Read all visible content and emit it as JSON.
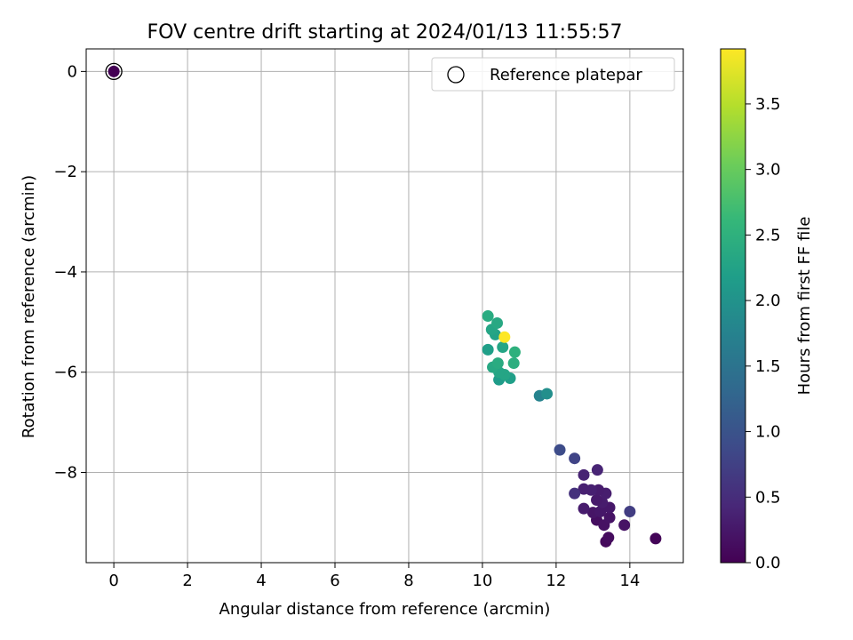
{
  "chart_data": {
    "type": "scatter",
    "title": "FOV centre drift starting at 2024/01/13 11:55:57",
    "xlabel": "Angular distance from reference (arcmin)",
    "ylabel": "Rotation from reference (arcmin)",
    "xlim": [
      -0.75,
      15.45
    ],
    "ylim": [
      -9.8,
      0.45
    ],
    "x_ticks": [
      0,
      2,
      4,
      6,
      8,
      10,
      12,
      14
    ],
    "y_ticks": [
      0,
      -2,
      -4,
      -6,
      -8
    ],
    "grid": true,
    "legend": {
      "placement": "top-right",
      "entries": [
        "Reference platepar"
      ]
    },
    "colorbar": {
      "label": "Hours from first FF file",
      "range": [
        0,
        3.92
      ],
      "ticks": [
        "0.0",
        "0.5",
        "1.0",
        "1.5",
        "2.0",
        "2.5",
        "3.0",
        "3.5"
      ],
      "colormap": "viridis"
    },
    "reference_point": {
      "x": 0,
      "y": 0,
      "hours": 0
    },
    "points": [
      {
        "x": 14.7,
        "y": -9.32,
        "hours": 0.05
      },
      {
        "x": 13.35,
        "y": -9.38,
        "hours": 0.1
      },
      {
        "x": 13.42,
        "y": -9.3,
        "hours": 0.12
      },
      {
        "x": 13.85,
        "y": -9.05,
        "hours": 0.2
      },
      {
        "x": 13.1,
        "y": -8.95,
        "hours": 0.15
      },
      {
        "x": 13.3,
        "y": -9.05,
        "hours": 0.18
      },
      {
        "x": 13.45,
        "y": -8.9,
        "hours": 0.2
      },
      {
        "x": 13.0,
        "y": -8.8,
        "hours": 0.22
      },
      {
        "x": 13.2,
        "y": -8.78,
        "hours": 0.25
      },
      {
        "x": 13.45,
        "y": -8.7,
        "hours": 0.25
      },
      {
        "x": 13.25,
        "y": -8.6,
        "hours": 0.3
      },
      {
        "x": 13.1,
        "y": -8.55,
        "hours": 0.28
      },
      {
        "x": 12.75,
        "y": -8.72,
        "hours": 0.3
      },
      {
        "x": 13.35,
        "y": -8.42,
        "hours": 0.32
      },
      {
        "x": 13.15,
        "y": -8.35,
        "hours": 0.3
      },
      {
        "x": 12.75,
        "y": -8.33,
        "hours": 0.35
      },
      {
        "x": 12.95,
        "y": -8.35,
        "hours": 0.35
      },
      {
        "x": 12.75,
        "y": -8.05,
        "hours": 0.38
      },
      {
        "x": 13.12,
        "y": -7.95,
        "hours": 0.4
      },
      {
        "x": 12.5,
        "y": -8.42,
        "hours": 0.55
      },
      {
        "x": 14.0,
        "y": -8.78,
        "hours": 0.7
      },
      {
        "x": 12.5,
        "y": -7.72,
        "hours": 0.8
      },
      {
        "x": 12.1,
        "y": -7.55,
        "hours": 0.9
      },
      {
        "x": 11.55,
        "y": -6.47,
        "hours": 1.75
      },
      {
        "x": 11.75,
        "y": -6.43,
        "hours": 1.95
      },
      {
        "x": 10.45,
        "y": -6.15,
        "hours": 2.15
      },
      {
        "x": 10.75,
        "y": -6.12,
        "hours": 2.2
      },
      {
        "x": 10.6,
        "y": -6.05,
        "hours": 2.3
      },
      {
        "x": 10.45,
        "y": -6.0,
        "hours": 2.3
      },
      {
        "x": 10.28,
        "y": -5.9,
        "hours": 2.35
      },
      {
        "x": 10.42,
        "y": -5.82,
        "hours": 2.4
      },
      {
        "x": 10.85,
        "y": -5.82,
        "hours": 2.45
      },
      {
        "x": 10.15,
        "y": -5.55,
        "hours": 2.2
      },
      {
        "x": 10.55,
        "y": -5.5,
        "hours": 2.3
      },
      {
        "x": 10.88,
        "y": -5.6,
        "hours": 2.5
      },
      {
        "x": 10.35,
        "y": -5.25,
        "hours": 2.25
      },
      {
        "x": 10.25,
        "y": -5.15,
        "hours": 2.3
      },
      {
        "x": 10.4,
        "y": -5.02,
        "hours": 2.35
      },
      {
        "x": 10.15,
        "y": -4.88,
        "hours": 2.4
      },
      {
        "x": 10.6,
        "y": -5.3,
        "hours": 3.92
      }
    ]
  }
}
